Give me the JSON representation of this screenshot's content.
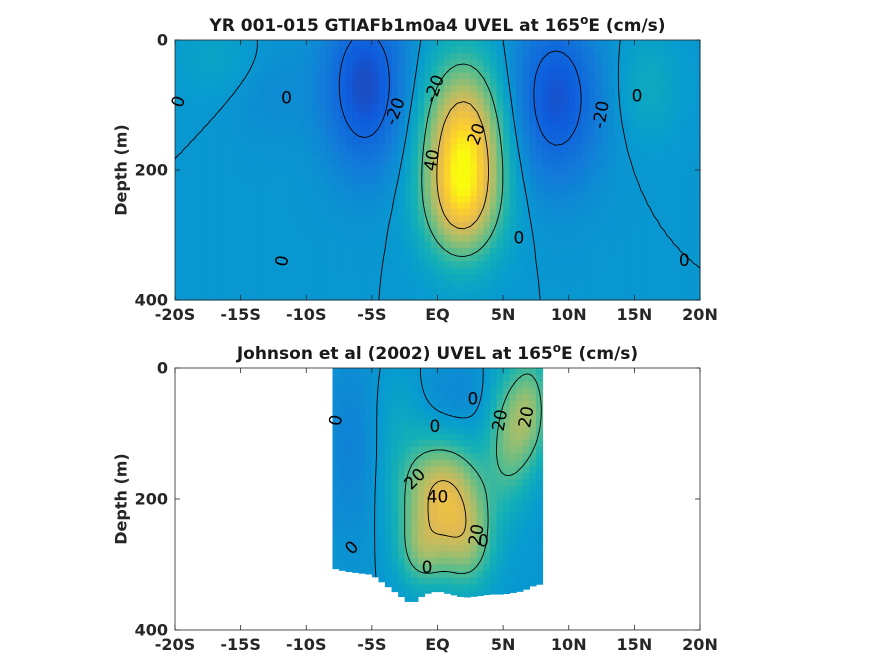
{
  "chart_data": [
    {
      "type": "heatmap",
      "title": "YR 001-015 GTIAFb1m0a4 UVEL at 165",
      "title_sup": "o",
      "title_end": "E (cm/s)",
      "xlabel": "",
      "ylabel": "Depth (m)",
      "xlim": [
        -20,
        20
      ],
      "ylim": [
        0,
        400
      ],
      "y_reversed": true,
      "grid": false,
      "xticks": [
        -20,
        -15,
        -10,
        -5,
        0,
        5,
        10,
        15,
        20
      ],
      "xtick_labels": [
        "-20S",
        "-15S",
        "-10S",
        "-5S",
        "EQ",
        "5N",
        "10N",
        "15N",
        "20N"
      ],
      "yticks": [
        0,
        200,
        400
      ],
      "ytick_labels": [
        "0",
        "200",
        "400"
      ],
      "data_extent": {
        "lat": [
          -20,
          20
        ],
        "depth": [
          0,
          400
        ]
      },
      "colormap": "parula",
      "color_range": [
        -40,
        60
      ],
      "blobs": [
        {
          "lat": 2.0,
          "depth": 160,
          "slat": 2.2,
          "sdep": 90,
          "value": 52
        },
        {
          "lat": 1.8,
          "depth": 260,
          "slat": 2.0,
          "sdep": 60,
          "value": 25
        },
        {
          "lat": -5.5,
          "depth": 70,
          "slat": 2.2,
          "sdep": 90,
          "value": -30
        },
        {
          "lat": 9.0,
          "depth": 90,
          "slat": 2.4,
          "sdep": 90,
          "value": -28
        },
        {
          "lat": -13.0,
          "depth": 60,
          "slat": 2.0,
          "sdep": 60,
          "value": -6
        },
        {
          "lat": 16.0,
          "depth": 70,
          "slat": 1.8,
          "sdep": 60,
          "value": 8
        },
        {
          "lat": -16.0,
          "depth": 30,
          "slat": 3.0,
          "sdep": 40,
          "value": 6
        }
      ],
      "contour_labels": [
        {
          "text": "0",
          "lat": -19.7,
          "depth": 95,
          "angle": -70
        },
        {
          "text": "0",
          "lat": -11.5,
          "depth": 90,
          "angle": 0
        },
        {
          "text": "0",
          "lat": -11.8,
          "depth": 340,
          "angle": -80
        },
        {
          "text": "-20",
          "lat": -3.2,
          "depth": 110,
          "angle": -70
        },
        {
          "text": "-20",
          "lat": -0.2,
          "depth": 75,
          "angle": -70
        },
        {
          "text": "40",
          "lat": -0.4,
          "depth": 185,
          "angle": -80
        },
        {
          "text": "20",
          "lat": 3.0,
          "depth": 145,
          "angle": -70
        },
        {
          "text": "0",
          "lat": 6.2,
          "depth": 305,
          "angle": 0
        },
        {
          "text": "-20",
          "lat": 12.5,
          "depth": 115,
          "angle": -80
        },
        {
          "text": "0",
          "lat": 15.2,
          "depth": 87,
          "angle": 0
        },
        {
          "text": "0",
          "lat": 18.8,
          "depth": 340,
          "angle": 0
        }
      ]
    },
    {
      "type": "heatmap",
      "title": "Johnson et al (2002) UVEL at 165",
      "title_sup": "o",
      "title_end": "E (cm/s)",
      "xlabel": "",
      "ylabel": "Depth (m)",
      "xlim": [
        -20,
        20
      ],
      "ylim": [
        0,
        400
      ],
      "y_reversed": true,
      "grid": false,
      "xticks": [
        -20,
        -15,
        -10,
        -5,
        0,
        5,
        10,
        15,
        20
      ],
      "xtick_labels": [
        "-20S",
        "-15S",
        "-10S",
        "-5S",
        "EQ",
        "5N",
        "10N",
        "15N",
        "20N"
      ],
      "yticks": [
        0,
        200,
        400
      ],
      "ytick_labels": [
        "0",
        "200",
        "400"
      ],
      "data_extent": {
        "lat": [
          -8,
          8
        ],
        "depth": [
          0,
          350
        ]
      },
      "bottom_profile": [
        [
          -8.0,
          305
        ],
        [
          -7.0,
          310
        ],
        [
          -5.0,
          315
        ],
        [
          -4.0,
          330
        ],
        [
          -3.0,
          345
        ],
        [
          -2.0,
          360
        ],
        [
          -1.0,
          345
        ],
        [
          0.0,
          340
        ],
        [
          1.0,
          345
        ],
        [
          2.0,
          350
        ],
        [
          3.0,
          348
        ],
        [
          4.0,
          345
        ],
        [
          5.0,
          345
        ],
        [
          6.5,
          340
        ],
        [
          7.5,
          330
        ],
        [
          8.0,
          330
        ]
      ],
      "colormap": "parula",
      "color_range": [
        -40,
        60
      ],
      "blobs": [
        {
          "lat": 0.3,
          "depth": 190,
          "slat": 2.2,
          "sdep": 55,
          "value": 40
        },
        {
          "lat": 2.2,
          "depth": 270,
          "slat": 1.5,
          "sdep": 50,
          "value": 25
        },
        {
          "lat": -1.2,
          "depth": 280,
          "slat": 1.3,
          "sdep": 40,
          "value": 22
        },
        {
          "lat": 5.5,
          "depth": 100,
          "slat": 1.2,
          "sdep": 70,
          "value": 25
        },
        {
          "lat": 7.2,
          "depth": 60,
          "slat": 1.0,
          "sdep": 60,
          "value": 22
        },
        {
          "lat": -6.5,
          "depth": 120,
          "slat": 1.6,
          "sdep": 100,
          "value": -8
        },
        {
          "lat": 1.5,
          "depth": 40,
          "slat": 2.0,
          "sdep": 40,
          "value": -6
        },
        {
          "lat": -3.0,
          "depth": 80,
          "slat": 1.5,
          "sdep": 60,
          "value": 6
        }
      ],
      "contour_labels": [
        {
          "text": "0",
          "lat": -7.7,
          "depth": 80,
          "angle": -80
        },
        {
          "text": "0",
          "lat": -0.2,
          "depth": 90,
          "angle": 0
        },
        {
          "text": "0",
          "lat": 2.7,
          "depth": 48,
          "angle": 0
        },
        {
          "text": "20",
          "lat": 4.8,
          "depth": 80,
          "angle": -80
        },
        {
          "text": "20",
          "lat": 6.8,
          "depth": 75,
          "angle": -80
        },
        {
          "text": "20",
          "lat": -1.7,
          "depth": 170,
          "angle": -45
        },
        {
          "text": "40",
          "lat": 0.0,
          "depth": 198,
          "angle": 0
        },
        {
          "text": "20",
          "lat": 3.0,
          "depth": 255,
          "angle": -80
        },
        {
          "text": "0",
          "lat": 3.5,
          "depth": 265,
          "angle": 0
        },
        {
          "text": "0",
          "lat": -6.5,
          "depth": 275,
          "angle": -45
        },
        {
          "text": "0",
          "lat": -0.8,
          "depth": 305,
          "angle": 0
        }
      ]
    }
  ]
}
